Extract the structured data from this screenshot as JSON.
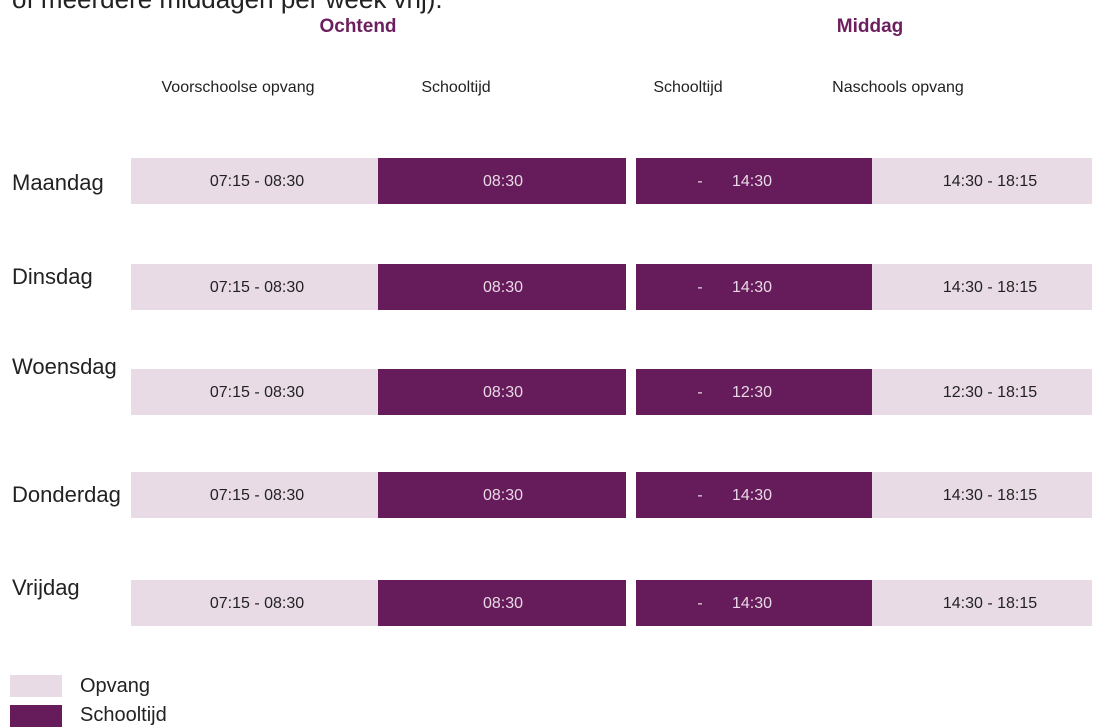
{
  "top_text": "of meerdere middagen per week vrij).",
  "headers": {
    "morning": "Ochtend",
    "afternoon": "Middag"
  },
  "columns": [
    "Voorschoolse opvang",
    "Schooltijd",
    "Schooltijd",
    "Naschools opvang"
  ],
  "rows": [
    {
      "day": "Maandag",
      "cells": [
        "07:15 - 08:30",
        "08:30",
        {
          "dash": "-",
          "time": "14:30"
        },
        "14:30 - 18:15"
      ]
    },
    {
      "day": "Dinsdag",
      "cells": [
        "07:15 - 08:30",
        "08:30",
        {
          "dash": "-",
          "time": "14:30"
        },
        "14:30 - 18:15"
      ]
    },
    {
      "day": "Woensdag",
      "cells": [
        "07:15 - 08:30",
        "08:30",
        {
          "dash": "-",
          "time": "12:30"
        },
        "12:30 - 18:15"
      ]
    },
    {
      "day": "Donderdag",
      "cells": [
        "07:15 - 08:30",
        "08:30",
        {
          "dash": "-",
          "time": "14:30"
        },
        "14:30 - 18:15"
      ]
    },
    {
      "day": "Vrijdag",
      "cells": [
        "07:15 - 08:30",
        "08:30",
        {
          "dash": "-",
          "time": "14:30"
        },
        "14:30 - 18:15"
      ]
    }
  ],
  "legend": [
    "Opvang",
    "Schooltijd"
  ]
}
